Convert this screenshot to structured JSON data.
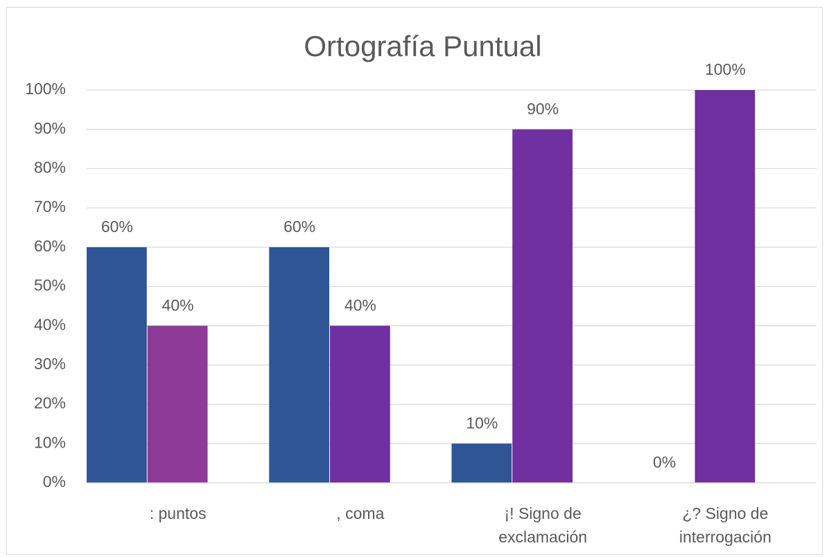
{
  "chart_data": {
    "type": "bar",
    "title": "Ortografía Puntual",
    "categories": [
      ": puntos",
      ", coma",
      "¡! Signo de exclamación",
      "¿? Signo de interrogación"
    ],
    "series": [
      {
        "color": "#2f5597",
        "values": [
          60,
          60,
          10,
          0
        ],
        "value_labels": [
          "60%",
          "60%",
          "10%",
          "0%"
        ]
      },
      {
        "color": "#7030a0",
        "colors": [
          "#8e3a98",
          "#7030a0",
          "#7030a0",
          "#7030a0"
        ],
        "values": [
          40,
          40,
          90,
          100
        ],
        "value_labels": [
          "40%",
          "40%",
          "90%",
          "100%"
        ]
      }
    ],
    "ylim": [
      0,
      100
    ],
    "yticks": [
      {
        "value": 0,
        "label": "0%"
      },
      {
        "value": 10,
        "label": "10%"
      },
      {
        "value": 20,
        "label": "20%"
      },
      {
        "value": 30,
        "label": "30%"
      },
      {
        "value": 40,
        "label": "40%"
      },
      {
        "value": 50,
        "label": "50%"
      },
      {
        "value": 60,
        "label": "60%"
      },
      {
        "value": 70,
        "label": "70%"
      },
      {
        "value": 80,
        "label": "80%"
      },
      {
        "value": 90,
        "label": "90%"
      },
      {
        "value": 100,
        "label": "100%"
      }
    ],
    "grid": true
  }
}
